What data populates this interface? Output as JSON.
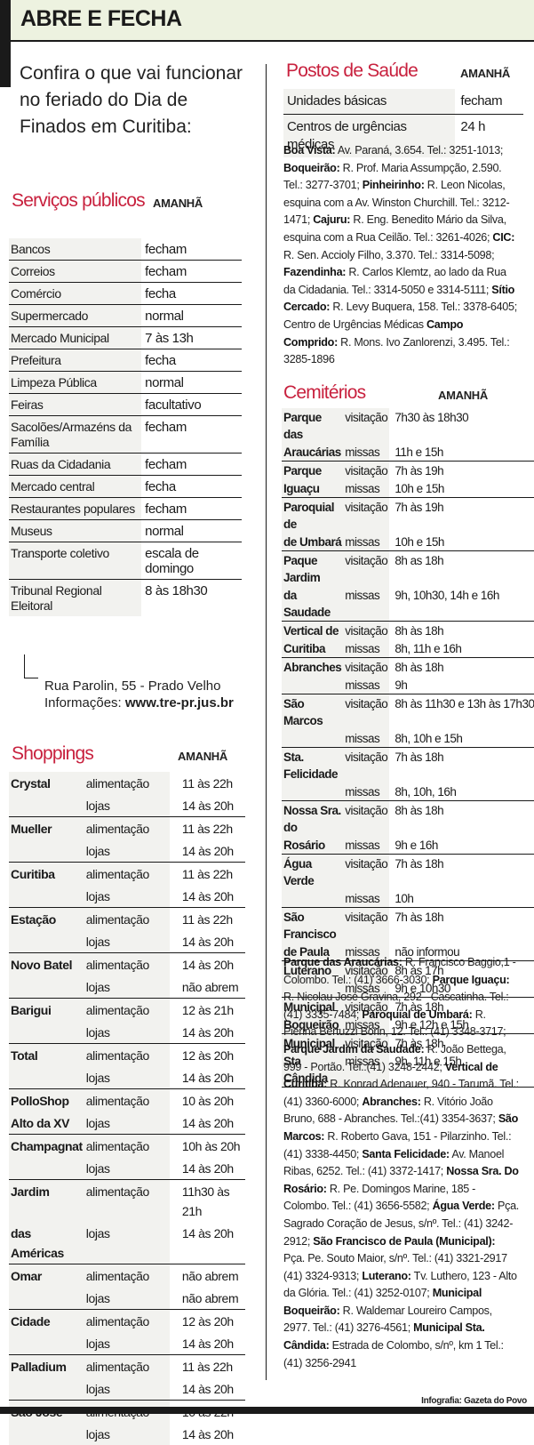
{
  "header": {
    "title": "ABRE E FECHA"
  },
  "intro": "Confira o que vai funcionar no feriado do Dia de Finados em Curitiba:",
  "servicos": {
    "title": "Serviços públicos",
    "amanha": "AMANHÃ",
    "rows": [
      {
        "k": "Bancos",
        "v": "fecham"
      },
      {
        "k": "Correios",
        "v": "fecham"
      },
      {
        "k": "Comércio",
        "v": "fecha"
      },
      {
        "k": "Supermercado",
        "v": "normal"
      },
      {
        "k": "Mercado Municipal",
        "v": "7 às 13h"
      },
      {
        "k": "Prefeitura",
        "v": "fecha"
      },
      {
        "k": "Limpeza Pública",
        "v": "normal"
      },
      {
        "k": "Feiras",
        "v": "facultativo"
      },
      {
        "k": "Sacolões/Armazéns da Família",
        "v": "fecham"
      },
      {
        "k": "Ruas da Cidadania",
        "v": "fecham"
      },
      {
        "k": "Mercado central",
        "v": "fecha"
      },
      {
        "k": "Restaurantes populares",
        "v": "fecham"
      },
      {
        "k": "Museus",
        "v": "normal"
      },
      {
        "k": "Transporte coletivo",
        "v": "escala de domingo"
      },
      {
        "k": "Tribunal Regional Eleitoral",
        "v": "8 às 18h30"
      }
    ],
    "tre_address": "Rua Parolin, 55 - Prado Velho",
    "tre_info_label": "Informações:",
    "tre_info_url": "www.tre-pr.jus.br"
  },
  "shoppings": {
    "title": "Shoppings",
    "amanha": "AMANHÃ",
    "rows": [
      {
        "name1": "Crystal",
        "name2": "",
        "alim": "11 às 22h",
        "lojas": "14 às 20h"
      },
      {
        "name1": "Mueller",
        "name2": "",
        "alim": "11 às 22h",
        "lojas": "14 às 20h"
      },
      {
        "name1": "Curitiba",
        "name2": "",
        "alim": "11 às 22h",
        "lojas": "14 às 20h"
      },
      {
        "name1": "Estação",
        "name2": "",
        "alim": "11 às 22h",
        "lojas": "14 às 20h"
      },
      {
        "name1": "Novo Batel",
        "name2": "",
        "alim": "14 às 20h",
        "lojas": "não abrem"
      },
      {
        "name1": "Barigui",
        "name2": "",
        "alim": "12 às 21h",
        "lojas": "14 às 20h"
      },
      {
        "name1": "Total",
        "name2": "",
        "alim": "12 às 20h",
        "lojas": "14 às 20h"
      },
      {
        "name1": "PolloShop",
        "name2": "Alto da XV",
        "alim": "10 às 20h",
        "lojas": "14 às 20h"
      },
      {
        "name1": "Champagnat",
        "name2": "",
        "alim": "10h às 20h",
        "lojas": "14 às 20h"
      },
      {
        "name1": "Jardim",
        "name2": "das Américas",
        "alim": "11h30 às 21h",
        "lojas": "14 às 20h"
      },
      {
        "name1": "Omar",
        "name2": "",
        "alim": "não abrem",
        "lojas": "não abrem"
      },
      {
        "name1": "Cidade",
        "name2": "",
        "alim": "12 às 20h",
        "lojas": "14 às 20h"
      },
      {
        "name1": "Palladium",
        "name2": "",
        "alim": "11 às 22h",
        "lojas": "14 às 20h"
      },
      {
        "name1": "São José",
        "name2": "",
        "alim": "10 às 22h",
        "lojas": "14 às 20h"
      }
    ],
    "label_alim": "alimentação",
    "label_lojas": "lojas"
  },
  "postos": {
    "title": "Postos de Saúde",
    "amanha": "AMANHÃ",
    "rows": [
      {
        "k": "Unidades básicas",
        "v": "fecham"
      },
      {
        "k": "Centros de urgências médicas",
        "v": "24 h"
      }
    ],
    "addresses": [
      {
        "b": "Boa Vista:",
        "t": " Av. Paraná, 3.654. Tel.: 3251-1013; "
      },
      {
        "b": "Boqueirão:",
        "t": " R. Prof. Maria Assumpção, 2.590. Tel.: 3277-3701; "
      },
      {
        "b": "Pinheirinho:",
        "t": " R. Leon Nicolas, esquina com a Av. Winston Churchill. Tel.: 3212-1471; "
      },
      {
        "b": "Cajuru:",
        "t": " R. Eng. Benedito Mário da Silva, esquina com a Rua Ceilão. Tel.: 3261-4026; "
      },
      {
        "b": "CIC:",
        "t": " R. Sen. Accioly Filho, 3.370. Tel.: 3314-5098; "
      },
      {
        "b": "Fazendinha:",
        "t": " R. Carlos Klemtz, ao lado da Rua da Cidadania. Tel.: 3314-5050 e 3314-5111; "
      },
      {
        "b": "Sítio Cercado:",
        "t": " R. Levy Buquera, 158. Tel.: 3378-6405; Centro de Urgências Médicas "
      },
      {
        "b": "Campo Comprido:",
        "t": " R. Mons. Ivo Zanlorenzi, 3.495. Tel.: 3285-1896"
      }
    ]
  },
  "cemiterios": {
    "title": "Cemitérios",
    "amanha": "AMANHÃ",
    "label_visit": "visitação",
    "label_missas": "missas",
    "rows": [
      {
        "name1": "Parque das",
        "name2": "Araucárias",
        "visit": "7h30 às 18h30",
        "missas": "11h e 15h"
      },
      {
        "name1": "Parque",
        "name2": "Iguaçu",
        "visit": "7h às 19h",
        "missas": "10h e 15h"
      },
      {
        "name1": "Paroquial de",
        "name2": "de Umbará",
        "visit": "7h às 19h",
        "missas": "10h e 15h"
      },
      {
        "name1": "Paque Jardim",
        "name2": "da Saudade",
        "visit": "8h as 18h",
        "missas": "9h, 10h30, 14h e 16h"
      },
      {
        "name1": "Vertical de",
        "name2": "Curitiba",
        "visit": "8h às 18h",
        "missas": "8h, 11h e 16h"
      },
      {
        "name1": "Abranches",
        "name2": "",
        "visit": "8h às 18h",
        "missas": "9h"
      },
      {
        "name1": "São Marcos",
        "name2": "",
        "visit": "8h às 11h30 e 13h às 17h30",
        "missas": "8h, 10h e 15h"
      },
      {
        "name1": "Sta. Felicidade",
        "name2": "",
        "visit": "7h às 18h",
        "missas": "8h, 10h, 16h"
      },
      {
        "name1": "Nossa Sra. do",
        "name2": "Rosário",
        "visit": "8h às 18h",
        "missas": "9h e 16h"
      },
      {
        "name1": "Água Verde",
        "name2": "",
        "visit": "7h às 18h",
        "missas": "10h"
      },
      {
        "name1": "São Francisco",
        "name2": "de Paula",
        "visit": "7h às 18h",
        "missas": "não informou"
      },
      {
        "name1": "Luterano",
        "name2": "",
        "visit": "8h às 17h",
        "missas": "9h e 10h30"
      },
      {
        "name1": "Municipal",
        "name2": "Boqueirão",
        "visit": "7h às 18h",
        "missas": "9h e 12h e 15h"
      },
      {
        "name1": "Municipal",
        "name2": "Sta Cândida",
        "visit": "7h às 18h",
        "missas": "9h, 11h e 15h"
      }
    ],
    "addresses": [
      {
        "b": "Parque das Araucárias:",
        "t": " R. Francisco Baggio,1 - Colombo. Tel.: (41) 3666-3030; "
      },
      {
        "b": "Parque Iguaçu:",
        "t": " R. Nicolau José Gravina, 292 - Cascatinha. Tel.:(41) 3335-7484; "
      },
      {
        "b": "Paroquial de Umbará:",
        "t": " R. Pierina Bertuzzi Borin, 12. Tel.: (41) 3348-3717; "
      },
      {
        "b": "Parque Jardim da Saudade:",
        "t": " R. João Bettega, 999 - Portão. Tel.:(41) 3248-2442; "
      },
      {
        "b": "Vertical de Curitiba:",
        "t": " R. Konrad Adenauer, 940 - Tarumã. Tel.: (41) 3360-6000; "
      },
      {
        "b": "Abranches:",
        "t": " R. Vitório João Bruno, 688 - Abranches. Tel.:(41) 3354-3637; "
      },
      {
        "b": "São Marcos:",
        "t": " R. Roberto Gava, 151 - Pilarzinho. Tel.: (41) 3338-4450; "
      },
      {
        "b": "Santa Felicidade:",
        "t": " Av. Manoel Ribas, 6252. Tel.: (41) 3372-1417; "
      },
      {
        "b": "Nossa Sra. Do Rosário:",
        "t": " R. Pe. Domingos Marine, 185 - Colombo. Tel.: (41) 3656-5582; "
      },
      {
        "b": "Água Verde:",
        "t": " Pça. Sagrado Coração de Jesus, s/nº. Tel.: (41) 3242-2912; "
      },
      {
        "b": "São Francisco de Paula (Municipal):",
        "t": " Pça. Pe. Souto Maior, s/nº. Tel.: (41) 3321-2917 (41) 3324-9313; "
      },
      {
        "b": "Luterano:",
        "t": " Tv. Luthero, 123 - Alto da Glória. Tel.: (41) 3252-0107; "
      },
      {
        "b": "Municipal Boqueirão:",
        "t": " R. Waldemar Loureiro Campos, 2977. Tel.: (41) 3276-4561; "
      },
      {
        "b": "Municipal Sta. Cândida:",
        "t": " Estrada de Colombo, s/nº, km 1 Tel.: (41) 3256-2941"
      }
    ]
  },
  "credit": "Infografia: Gazeta do Povo",
  "colors": {
    "accent": "#c8213e",
    "header_bg": "#edf2e0",
    "cell_bg": "#f2f2ef",
    "rule": "#1a1a1a"
  }
}
